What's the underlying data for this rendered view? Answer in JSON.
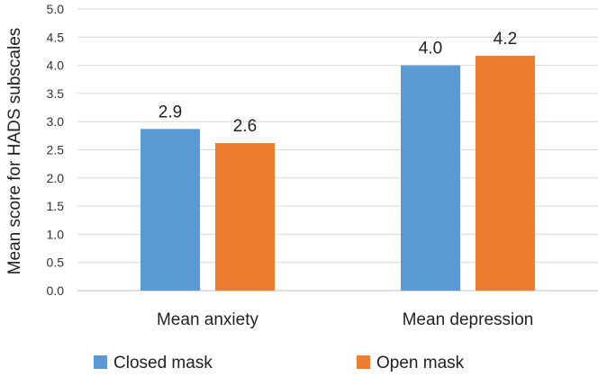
{
  "chart_data": {
    "type": "bar",
    "title": "",
    "xlabel": "",
    "ylabel": "Mean score for HADS subscales",
    "ylim": [
      0,
      5
    ],
    "yticks": [
      "0.0",
      "0.5",
      "1.0",
      "1.5",
      "2.0",
      "2.5",
      "3.0",
      "3.5",
      "4.0",
      "4.5",
      "5.0"
    ],
    "categories": [
      "Mean anxiety",
      "Mean depression"
    ],
    "series": [
      {
        "name": "Closed mask",
        "values": [
          2.87,
          4.0
        ],
        "labels": [
          "2.9",
          "4.0"
        ],
        "color": "#5B9BD5"
      },
      {
        "name": "Open mask",
        "values": [
          2.62,
          4.17
        ],
        "labels": [
          "2.6",
          "4.2"
        ],
        "color": "#ED7D31"
      }
    ],
    "grid": true,
    "legend_position": "bottom"
  }
}
